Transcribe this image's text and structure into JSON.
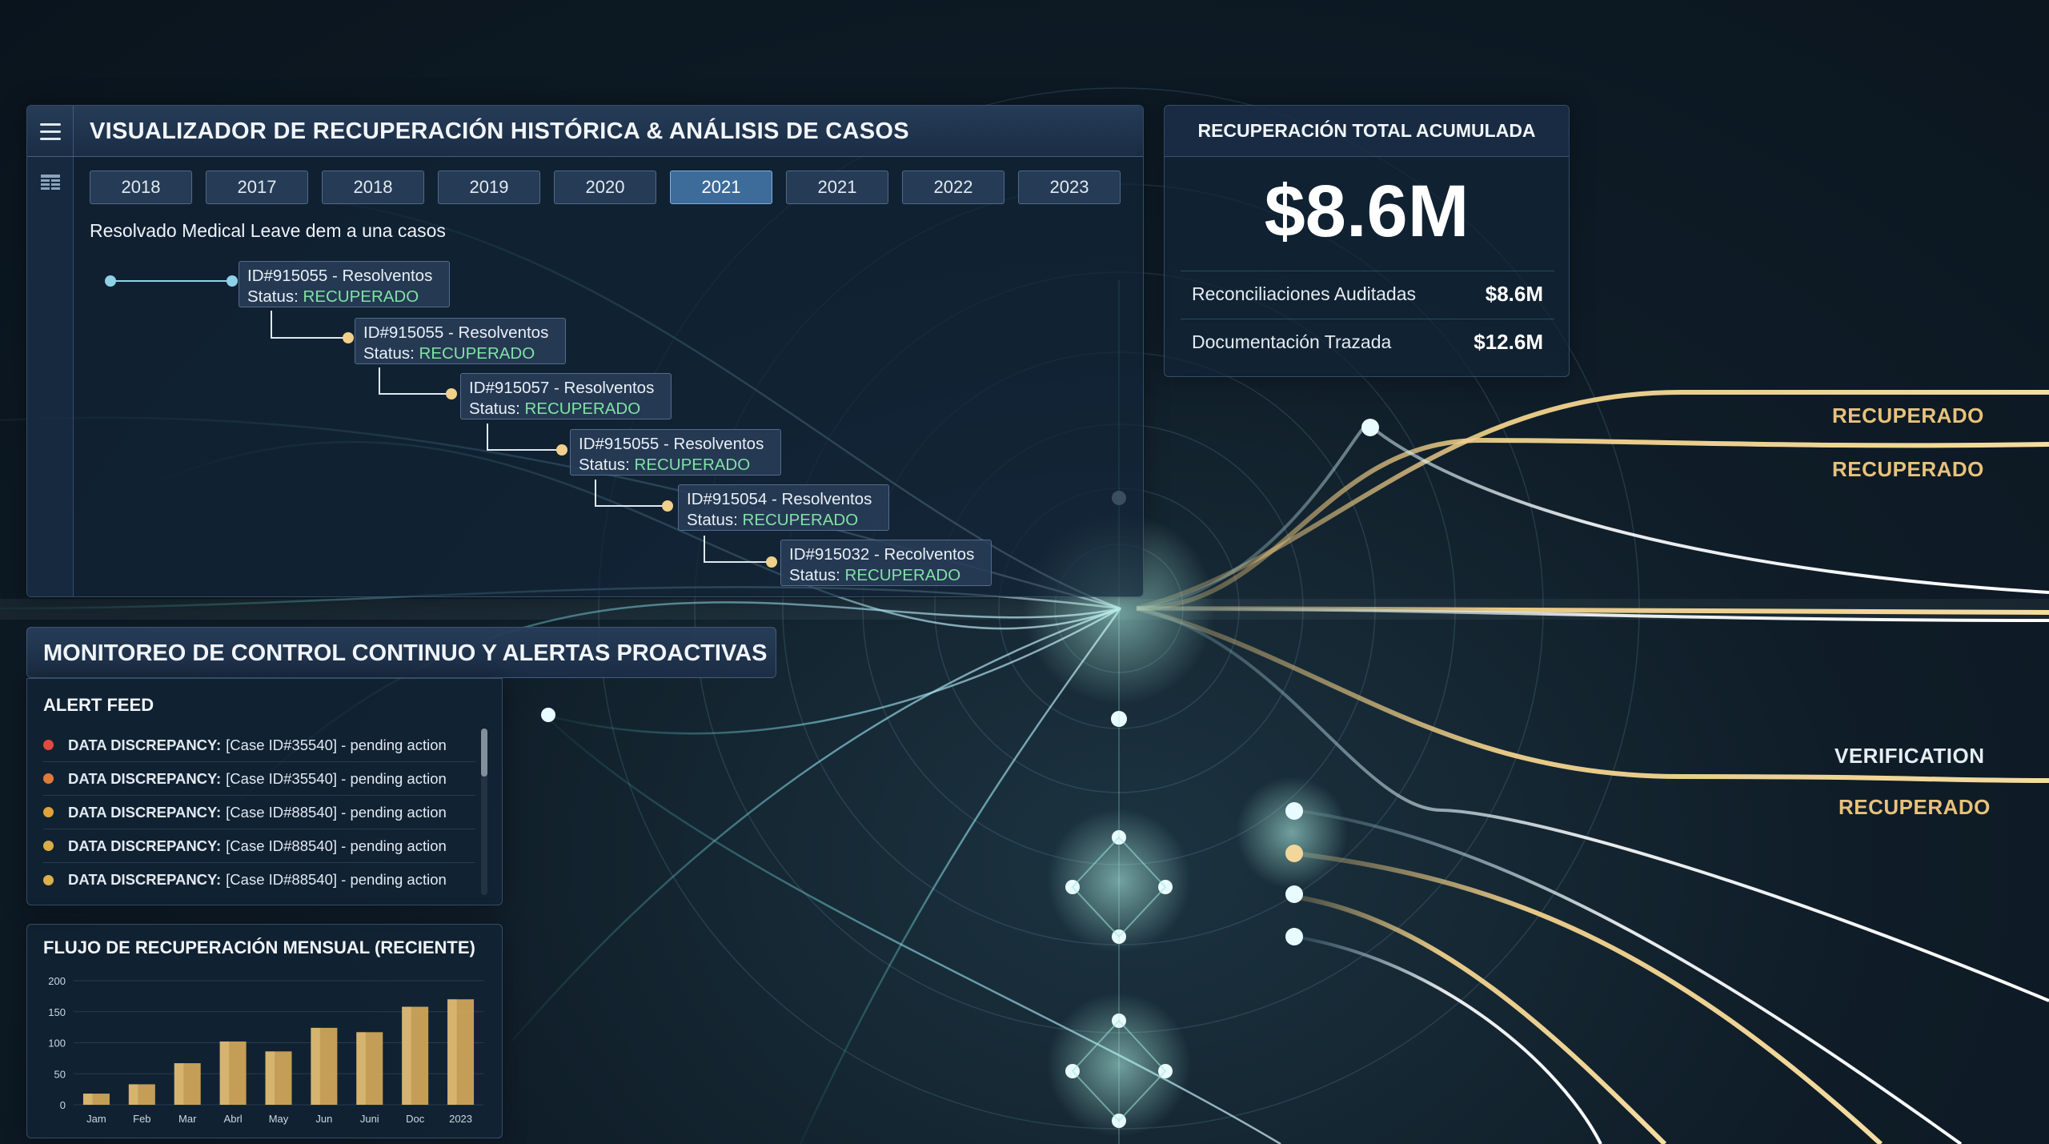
{
  "main": {
    "title": "VISUALIZADOR DE RECUPERACIÓN HISTÓRICA & ANÁLISIS DE CASOS",
    "year_tabs": [
      "2018",
      "2017",
      "2018",
      "2019",
      "2020",
      "2021",
      "2021",
      "2022",
      "2023"
    ],
    "active_tab_index": 5,
    "section_caption": "Resolvado Medical Leave dem a una casos",
    "status_prefix": "Status:",
    "cases": [
      {
        "id": "ID#915055 - Resolventos",
        "status": "RECUPERADO"
      },
      {
        "id": "ID#915055 - Resolventos",
        "status": "RECUPERADO"
      },
      {
        "id": "ID#915057 - Resolventos",
        "status": "RECUPERADO"
      },
      {
        "id": "ID#915055 - Resolventos",
        "status": "RECUPERADO"
      },
      {
        "id": "ID#915054 - Resolventos",
        "status": "RECUPERADO"
      },
      {
        "id": "ID#915032 - Recolventos",
        "status": "RECUPERADO"
      }
    ]
  },
  "kpi": {
    "title": "RECUPERACIÓN TOTAL ACUMULADA",
    "value": "$8.6M",
    "rows": [
      {
        "label": "Reconciliaciones Auditadas",
        "value": "$8.6M"
      },
      {
        "label": "Documentación Trazada",
        "value": "$12.6M"
      }
    ]
  },
  "monitor": {
    "title": "MONITOREO DE CONTROL CONTINUO Y ALERTAS PROACTIVAS",
    "feed_label": "ALERT FEED",
    "alerts": [
      {
        "type": "DATA DISCREPANCY:",
        "text": "[Case ID#35540] - pending action",
        "color": "#e04b3f"
      },
      {
        "type": "DATA DISCREPANCY:",
        "text": "[Case ID#35540] - pending action",
        "color": "#e07a3a"
      },
      {
        "type": "DATA DISCREPANCY:",
        "text": "[Case ID#88540] - pending action",
        "color": "#e0a23a"
      },
      {
        "type": "DATA DISCREPANCY:",
        "text": "[Case ID#88540] - pending action",
        "color": "#d9ad45"
      },
      {
        "type": "DATA DISCREPANCY:",
        "text": "[Case ID#88540] - pending action",
        "color": "#d9b04a"
      }
    ]
  },
  "chart_data": {
    "type": "bar",
    "title": "FLUJO DE RECUPERACIÓN MENSUAL (RECIENTE)",
    "categories": [
      "Jam",
      "Feb",
      "Mar",
      "Abrl",
      "May",
      "Jun",
      "Juni",
      "Doc",
      "2023"
    ],
    "values": [
      18,
      33,
      67,
      102,
      86,
      124,
      117,
      158,
      170
    ],
    "ylim": [
      0,
      200
    ],
    "yticks": [
      0,
      50,
      100,
      150,
      200
    ],
    "grid": true,
    "bar_color": "#d4a95a"
  },
  "side_labels": [
    {
      "text": "RECUPERADO",
      "color": "#e8c27a"
    },
    {
      "text": "RECUPERADO",
      "color": "#e8c27a"
    },
    {
      "text": "VERIFICATION",
      "color": "#e6edf3"
    },
    {
      "text": "RECUPERADO",
      "color": "#e8c27a"
    }
  ],
  "colors": {
    "accent_blue": "#3d6b9a",
    "status_green": "#7fe3a4",
    "gold": "#e8c27a"
  }
}
